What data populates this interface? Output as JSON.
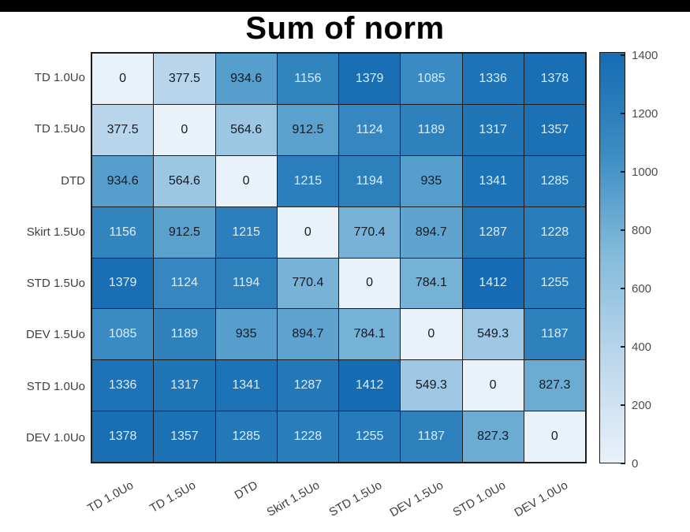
{
  "title": "Sum of norm",
  "chart_data": {
    "type": "heatmap",
    "title": "Sum of norm",
    "categories": [
      "TD 1.0Uo",
      "TD 1.5Uo",
      "DTD",
      "Skirt 1.5Uo",
      "STD 1.5Uo",
      "DEV 1.5Uo",
      "STD 1.0Uo",
      "DEV 1.0Uo"
    ],
    "matrix": [
      [
        0,
        377.5,
        934.6,
        1156,
        1379,
        1085,
        1336,
        1378
      ],
      [
        377.5,
        0,
        564.6,
        912.5,
        1124,
        1189,
        1317,
        1357
      ],
      [
        934.6,
        564.6,
        0,
        1215,
        1194,
        935,
        1341,
        1285
      ],
      [
        1156,
        912.5,
        1215,
        0,
        770.4,
        894.7,
        1287,
        1228
      ],
      [
        1379,
        1124,
        1194,
        770.4,
        0,
        784.1,
        1412,
        1255
      ],
      [
        1085,
        1189,
        935,
        894.7,
        784.1,
        0,
        549.3,
        1187
      ],
      [
        1336,
        1317,
        1341,
        1287,
        1412,
        549.3,
        0,
        827.3
      ],
      [
        1378,
        1357,
        1285,
        1228,
        1255,
        1187,
        827.3,
        0
      ]
    ],
    "vmin": 0,
    "vmax": 1412,
    "colorbar_ticks": [
      0,
      200,
      400,
      600,
      800,
      1000,
      1200,
      1400
    ],
    "colormap_anchors": [
      {
        "t": 0.0,
        "color": "#e9f1f9"
      },
      {
        "t": 0.25,
        "color": "#bdd7ec"
      },
      {
        "t": 0.5,
        "color": "#85bcdb"
      },
      {
        "t": 0.75,
        "color": "#3d8dc4"
      },
      {
        "t": 1.0,
        "color": "#166cb2"
      }
    ],
    "cell_text_dark": "#141b26",
    "cell_text_light": "#d9edf9",
    "text_light_threshold": 1000,
    "grid_color": "#1c1c1c",
    "axis_label_color": "#3f3f3f",
    "colorbar_label_color": "#4d4d4d",
    "legend_position": "right",
    "xlabel": "",
    "ylabel": ""
  }
}
